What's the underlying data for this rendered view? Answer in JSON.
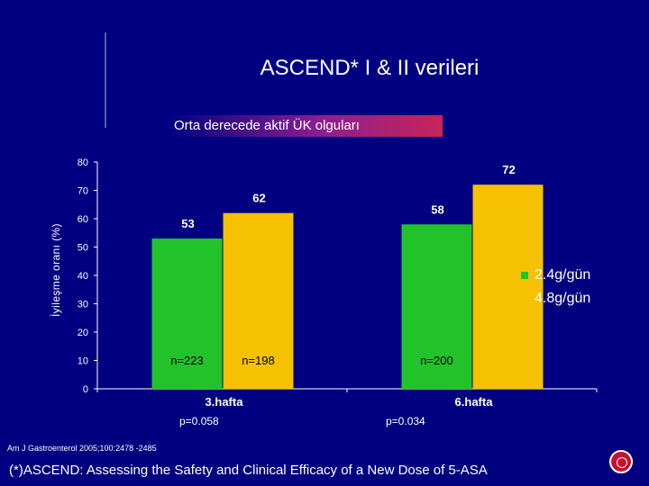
{
  "title": "ASCEND* I & II  verileri",
  "subtitle": "Orta derecede aktif ÜK olguları",
  "chart_data": {
    "type": "bar",
    "categories": [
      "3.hafta",
      "6.hafta"
    ],
    "series": [
      {
        "name": "2.4g/gün",
        "values": [
          53,
          58
        ],
        "n_labels": [
          "n=223",
          "n=200"
        ],
        "color": "#22c32a"
      },
      {
        "name": "4.8g/gün",
        "values": [
          62,
          72
        ],
        "n_labels": [
          "n=198",
          ""
        ],
        "color": "#f5c100"
      }
    ],
    "ylabel": "İyileşme  oranı    (%)",
    "ylim": [
      0,
      80
    ],
    "yticks": [
      0,
      10,
      20,
      30,
      40,
      50,
      60,
      70,
      80
    ],
    "p_values": [
      "p=0.058",
      "p=0.034"
    ],
    "legend_position": "right",
    "grid": false
  },
  "source": "Am J Gastroenterol 2005;100:2478 -2485",
  "footnote": "(*)ASCEND: Assessing the Safety and Clinical Efficacy of a New Dose of  5-ASA"
}
